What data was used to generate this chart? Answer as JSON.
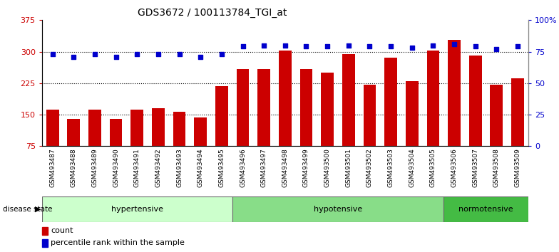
{
  "title": "GDS3672 / 100113784_TGI_at",
  "samples": [
    "GSM493487",
    "GSM493488",
    "GSM493489",
    "GSM493490",
    "GSM493491",
    "GSM493492",
    "GSM493493",
    "GSM493494",
    "GSM493495",
    "GSM493496",
    "GSM493497",
    "GSM493498",
    "GSM493499",
    "GSM493500",
    "GSM493501",
    "GSM493502",
    "GSM493503",
    "GSM493504",
    "GSM493505",
    "GSM493506",
    "GSM493507",
    "GSM493508",
    "GSM493509"
  ],
  "counts": [
    162,
    140,
    162,
    140,
    162,
    165,
    157,
    143,
    218,
    258,
    258,
    302,
    258,
    250,
    295,
    222,
    285,
    230,
    302,
    328,
    290,
    222,
    237
  ],
  "percentile_ranks": [
    73,
    71,
    73,
    71,
    73,
    73,
    73,
    71,
    73,
    79,
    80,
    80,
    79,
    79,
    80,
    79,
    79,
    78,
    80,
    81,
    79,
    77,
    79
  ],
  "disease_groups": [
    {
      "label": "hypertensive",
      "start": 0,
      "end": 9,
      "color": "#ccffcc"
    },
    {
      "label": "hypotensive",
      "start": 9,
      "end": 19,
      "color": "#88dd88"
    },
    {
      "label": "normotensive",
      "start": 19,
      "end": 23,
      "color": "#44bb44"
    }
  ],
  "bar_color": "#cc0000",
  "dot_color": "#0000cc",
  "ylim_left": [
    75,
    375
  ],
  "ylim_right": [
    0,
    100
  ],
  "yticks_left": [
    75,
    150,
    225,
    300,
    375
  ],
  "yticks_right": [
    0,
    25,
    50,
    75,
    100
  ],
  "grid_lines": [
    150,
    225,
    300
  ],
  "title_fontsize": 10,
  "label_count": "count",
  "label_percentile": "percentile rank within the sample"
}
